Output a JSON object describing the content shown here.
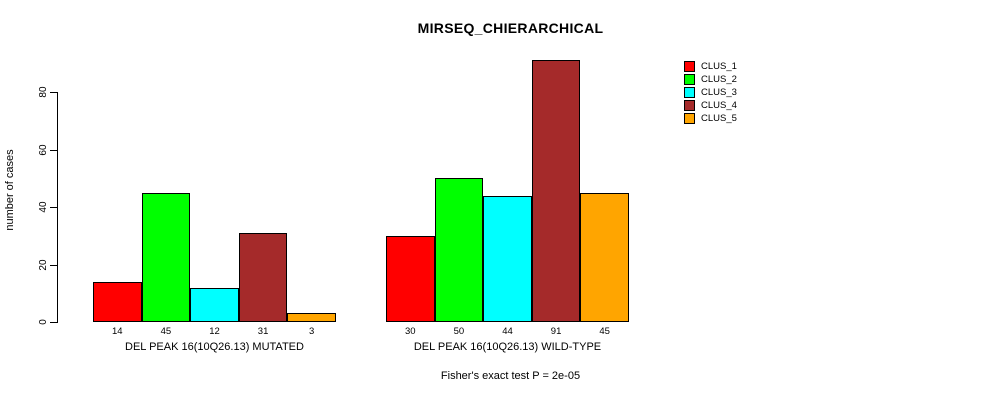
{
  "chart_data": {
    "type": "bar",
    "title": "MIRSEQ_CHIERARCHICAL",
    "ylabel": "number of cases",
    "xlabel": "",
    "ylim": [
      0,
      80
    ],
    "yticks": [
      0,
      20,
      40,
      60,
      80
    ],
    "grid": false,
    "legend_position": "right",
    "series_names": [
      "CLUS_1",
      "CLUS_2",
      "CLUS_3",
      "CLUS_4",
      "CLUS_5"
    ],
    "series_colors": [
      "#FF0000",
      "#00FF00",
      "#00FFFF",
      "#A52A2A",
      "#FFA500"
    ],
    "groups": [
      {
        "label": "DEL PEAK 16(10Q26.13) MUTATED",
        "values": [
          14,
          45,
          12,
          31,
          3
        ]
      },
      {
        "label": "DEL PEAK 16(10Q26.13) WILD-TYPE",
        "values": [
          30,
          50,
          44,
          91,
          45
        ]
      }
    ],
    "annotation": "Fisher's exact test P = 2e-05"
  },
  "legend": {
    "items": [
      {
        "label": "CLUS_1",
        "color": "#FF0000"
      },
      {
        "label": "CLUS_2",
        "color": "#00FF00"
      },
      {
        "label": "CLUS_3",
        "color": "#00FFFF"
      },
      {
        "label": "CLUS_4",
        "color": "#A52A2A"
      },
      {
        "label": "CLUS_5",
        "color": "#FFA500"
      }
    ]
  },
  "colors": {
    "background": "#FFFFFF",
    "axis": "#000000",
    "text": "#000000"
  }
}
